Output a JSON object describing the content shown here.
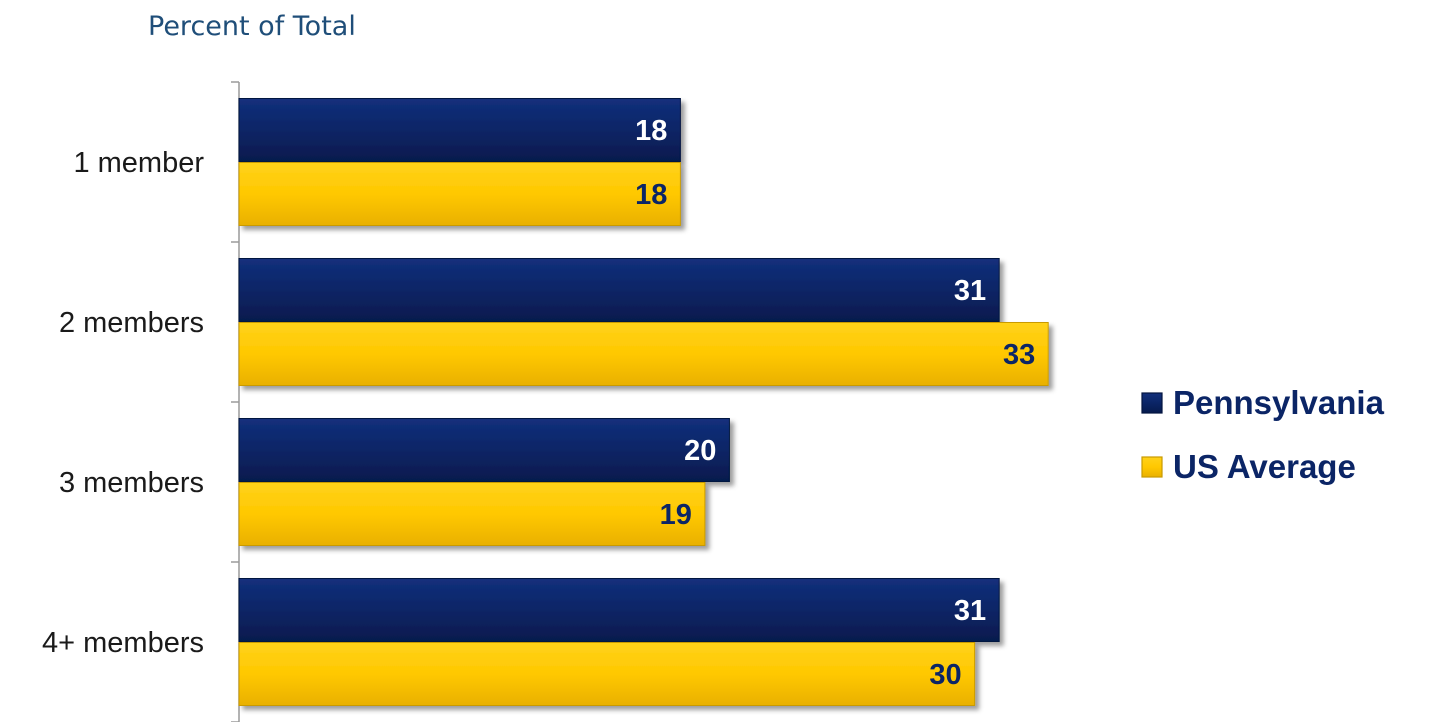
{
  "chart_data": {
    "type": "bar",
    "orientation": "horizontal",
    "title": "Percent of Total",
    "categories": [
      "1 member",
      "2 members",
      "3 members",
      "4+ members"
    ],
    "series": [
      {
        "name": "Pennsylvania",
        "values": [
          18,
          31,
          20,
          31
        ],
        "color": "#0b2566",
        "label_color": "#ffffff"
      },
      {
        "name": "US Average",
        "values": [
          18,
          33,
          19,
          30
        ],
        "color": "#ffc800",
        "label_color": "#0b2566"
      }
    ],
    "xlim": [
      0,
      34.5
    ],
    "grid": false,
    "data_labels": true,
    "legend_position": "right"
  }
}
